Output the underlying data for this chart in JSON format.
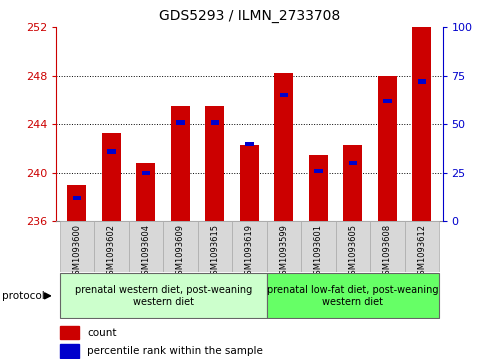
{
  "title": "GDS5293 / ILMN_2733708",
  "samples": [
    "GSM1093600",
    "GSM1093602",
    "GSM1093604",
    "GSM1093609",
    "GSM1093615",
    "GSM1093619",
    "GSM1093599",
    "GSM1093601",
    "GSM1093605",
    "GSM1093608",
    "GSM1093612"
  ],
  "count_values": [
    239.0,
    243.3,
    240.8,
    245.5,
    245.5,
    242.3,
    248.2,
    241.5,
    242.3,
    248.0,
    252.0
  ],
  "percentile_values": [
    12,
    36,
    25,
    51,
    51,
    40,
    65,
    26,
    30,
    62,
    72
  ],
  "y_min": 236,
  "y_max": 252,
  "y_ticks": [
    236,
    240,
    244,
    248,
    252
  ],
  "y2_ticks": [
    0,
    25,
    50,
    75,
    100
  ],
  "bar_color": "#cc0000",
  "percentile_color": "#0000cc",
  "bar_width": 0.55,
  "group1_label": "prenatal western diet, post-weaning\nwestern diet",
  "group2_label": "prenatal low-fat diet, post-weaning\nwestern diet",
  "group1_n": 6,
  "group2_n": 5,
  "group1_color": "#ccffcc",
  "group2_color": "#66ff66",
  "protocol_label": "protocol",
  "legend_count": "count",
  "legend_percentile": "percentile rank within the sample",
  "left_label_color": "#cc0000",
  "right_label_color": "#0000cc",
  "bg_color": "#d8d8d8",
  "grid_color": "#000000",
  "title_fontsize": 10,
  "tick_fontsize": 8,
  "label_fontsize": 6,
  "legend_fontsize": 7.5
}
